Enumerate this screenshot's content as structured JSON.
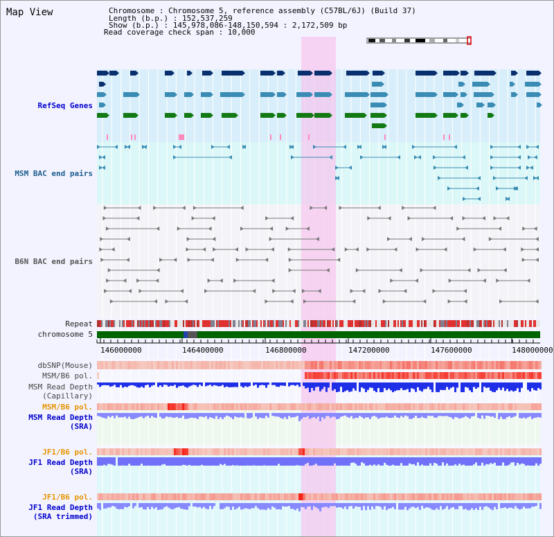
{
  "header": {
    "title": "Map View",
    "chromosome_line": "Chromosome   : Chromosome 5, reference assembly (C57BL/6J) (Build 37)",
    "length_line": " Length (b.p.) : 152,537,259",
    "show_line": "  Show (b.p.) : 145,978,086-148,150,594 : 2,172,509 bp",
    "coverage_line": "Read coverage check span : 10,000"
  },
  "tracks": {
    "refseq": "RefSeq Genes",
    "msm_bac": "MSM BAC end pairs",
    "b6n_bac": "B6N BAC end pairs",
    "repeat": "Repeat",
    "chrom": "chromosome 5",
    "dbsnp": "dbSNP(Mouse)",
    "msm_b6_pol_1": "MSM/B6 pol.",
    "msm_depth_cap_1": "MSM Read Depth",
    "msm_depth_cap_2": "(Capillary)",
    "msm_b6_pol_2": "MSM/B6 pol.",
    "msm_depth_sra_1": "MSM Read Depth",
    "msm_depth_sra_2": "(SRA)",
    "jf1_b6_pol_1": "JF1/B6 pol.",
    "jf1_depth_sra_1": "JF1 Read Depth",
    "jf1_depth_sra_2": "(SRA)",
    "jf1_b6_pol_2": "JF1/B6 pol.",
    "jf1_depth_trim_1": "JF1 Read Depth",
    "jf1_depth_trim_2": "(SRA trimmed)"
  },
  "axis_ticks": [
    "146000000",
    "146400000",
    "146800000",
    "147200000",
    "147600000",
    "148000000"
  ],
  "colors": {
    "background": "#f3f3ff",
    "refseq_bg": "#d8eefa",
    "bac_bg": "#dcf7f7",
    "b6n_bg": "#f4f4f8",
    "highlight": "#f6c4ee",
    "navy_gene": "#0a2f6e",
    "teal_gene": "#3a8cb4",
    "green_gene": "#137a13",
    "chromosome": "#006400",
    "label_blue": "#0000cc",
    "label_orange": "#e69500",
    "depth_blue": "#3333ee",
    "depth_light": "#8080ff"
  }
}
